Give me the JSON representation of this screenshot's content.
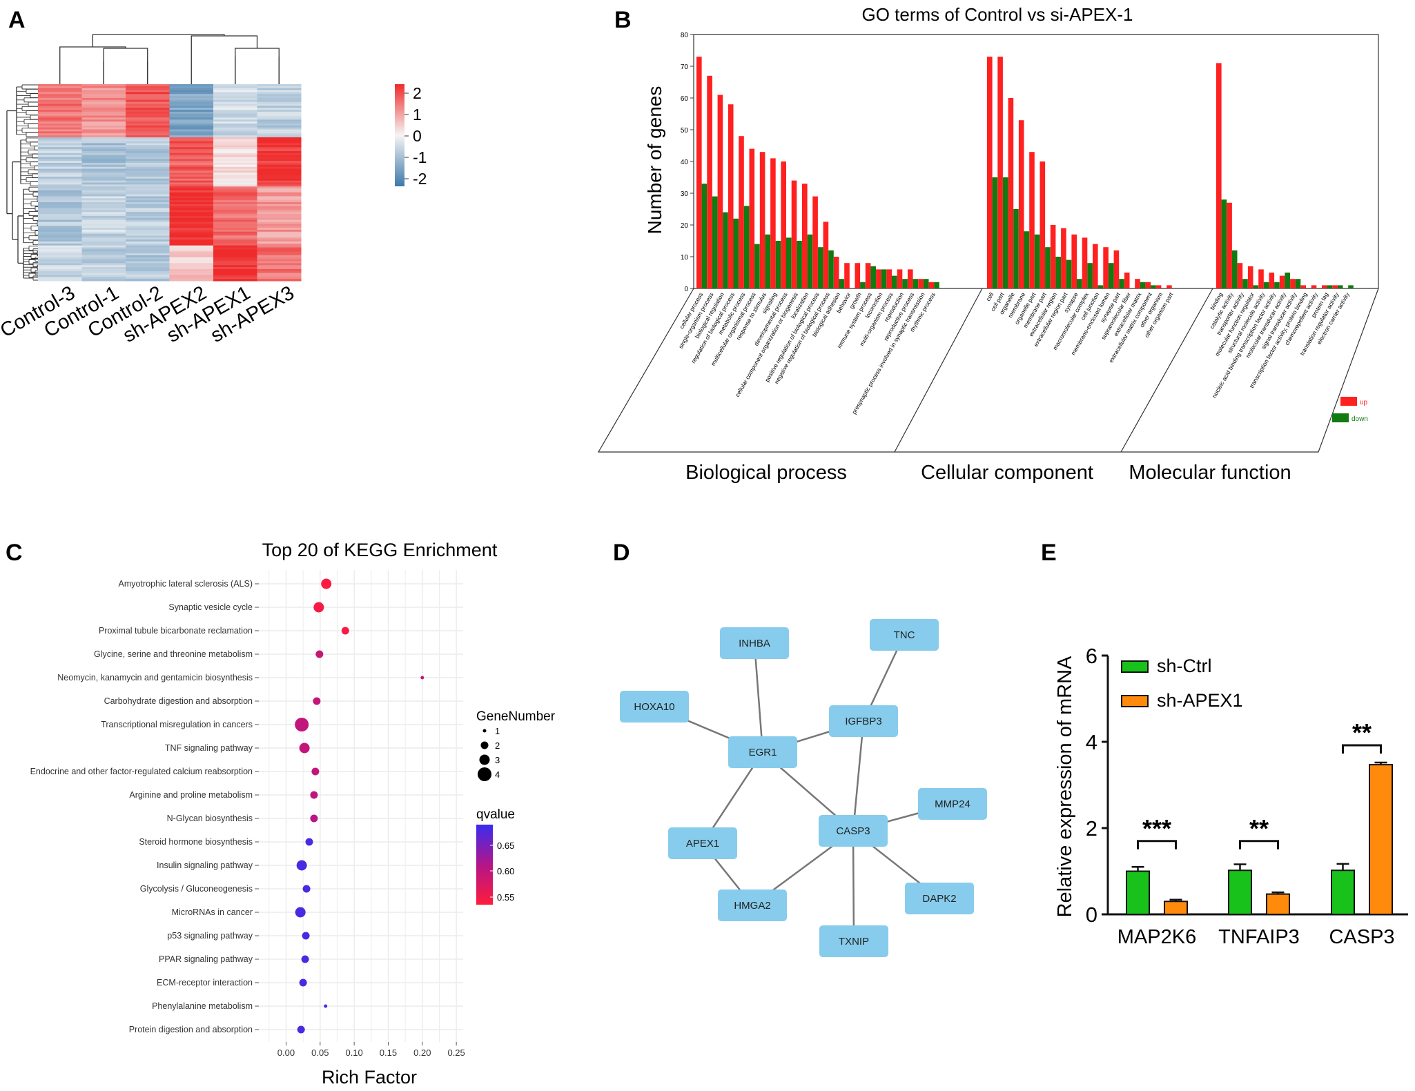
{
  "panels": {
    "A": "A",
    "B": "B",
    "C": "C",
    "D": "D",
    "E": "E"
  },
  "colors": {
    "up": "#ff2020",
    "down": "#117a11",
    "heat_high": "#ef2b2b",
    "heat_mid": "#f5f5f5",
    "heat_low": "#3c78aa",
    "node": "#87ccec",
    "edge": "#777777",
    "sh_ctrl": "#19c21a",
    "sh_apex1": "#ff8a0c"
  },
  "chart_data": [
    {
      "panel": "A",
      "type": "heatmap",
      "columns": [
        "Control-3",
        "Control-1",
        "Control-2",
        "sh-APEX2",
        "sh-APEX1",
        "sh-APEX3"
      ],
      "color_scale_ticks": [
        "2",
        "1",
        "0",
        "-1",
        "-2"
      ],
      "clusters": [
        {
          "rows": 27,
          "values": [
            1.3,
            1.0,
            1.6,
            -1.3,
            -0.4,
            -0.6
          ]
        },
        {
          "rows": 25,
          "values": [
            -0.6,
            -0.8,
            -0.7,
            1.5,
            0.2,
            1.9
          ]
        },
        {
          "rows": 30,
          "values": [
            -0.7,
            -0.5,
            -0.6,
            2.0,
            1.4,
            0.9
          ]
        },
        {
          "rows": 18,
          "values": [
            -0.5,
            -0.6,
            -0.7,
            0.4,
            2.0,
            1.3
          ]
        }
      ]
    },
    {
      "panel": "B",
      "type": "bar",
      "title": "GO terms of Control vs si-APEX-1",
      "ylabel": "Number of genes",
      "ylim": [
        0,
        80
      ],
      "yticks": [
        "0",
        "10",
        "20",
        "30",
        "40",
        "50",
        "60",
        "70",
        "80"
      ],
      "legend": {
        "position": "right",
        "up": "up",
        "down": "down"
      },
      "groups": [
        {
          "name": "Biological process",
          "terms": [
            "cellular process",
            "single-organism process",
            "biological regulation",
            "regulation of biological process",
            "metabolic process",
            "multicellular organismal process",
            "response to stimulus",
            "signaling",
            "developmental process",
            "cellular component organization or biogenesis",
            "localization",
            "positive regulation of biological process",
            "negative regulation of biological process",
            "biological adhesion",
            "behavior",
            "growth",
            "immune system process",
            "locomotion",
            "multi-organism process",
            "reproduction",
            "reproductive process",
            "presynaptic process involved in synaptic transmission",
            "rhythmic process"
          ],
          "up": [
            73,
            67,
            61,
            58,
            48,
            44,
            43,
            41,
            40,
            34,
            33,
            29,
            21,
            10,
            8,
            8,
            8,
            6,
            6,
            6,
            6,
            3,
            2
          ],
          "down": [
            33,
            29,
            24,
            22,
            26,
            14,
            17,
            15,
            16,
            15,
            17,
            13,
            12,
            3,
            0,
            2,
            7,
            6,
            4,
            3,
            3,
            3,
            2
          ]
        },
        {
          "name": "Cellular component",
          "terms": [
            "cell",
            "cell part",
            "organelle",
            "membrane",
            "organelle part",
            "membrane part",
            "extracellular region",
            "extracellular region part",
            "synapse",
            "macromolecular complex",
            "cell junction",
            "membrane-enclosed lumen",
            "synapse part",
            "supramolecular fiber",
            "extracellular matrix",
            "extracellular matrix component",
            "other organism",
            "other organism part"
          ],
          "up": [
            73,
            73,
            60,
            53,
            43,
            40,
            20,
            19,
            17,
            16,
            14,
            13,
            12,
            5,
            3,
            2,
            1,
            1
          ],
          "down": [
            35,
            35,
            25,
            18,
            17,
            13,
            10,
            9,
            3,
            8,
            1,
            8,
            3,
            0,
            2,
            1,
            0,
            0
          ]
        },
        {
          "name": "Molecular function",
          "terms": [
            "binding",
            "catalytic activity",
            "transporter activity",
            "molecular function regulator",
            "structural molecule activity",
            "nucleic acid binding transcription factor activity",
            "molecular transducer activity",
            "signal transducer activity",
            "transcription factor activity, protein binding",
            "chemorepellent activity",
            "protein tag",
            "translation regulator activity",
            "electron carrier activity"
          ],
          "up": [
            71,
            27,
            8,
            7,
            6,
            5,
            4,
            3,
            1,
            1,
            1,
            1,
            0
          ],
          "down": [
            28,
            12,
            3,
            1,
            2,
            2,
            5,
            3,
            0,
            0,
            1,
            1,
            1
          ]
        }
      ]
    },
    {
      "panel": "C",
      "type": "scatter",
      "title": "Top 20 of KEGG Enrichment",
      "xlabel": "Rich Factor",
      "xlim": [
        -0.04,
        0.26
      ],
      "xticks": [
        "0.00",
        "0.05",
        "0.10",
        "0.15",
        "0.20",
        "0.25"
      ],
      "size_legend_title": "GeneNumber",
      "size_legend": [
        "1",
        "2",
        "3",
        "4"
      ],
      "color_legend_title": "qvalue",
      "color_legend_ticks": [
        "0.65",
        "0.60",
        "0.55"
      ],
      "qrange": [
        0.53,
        0.68
      ],
      "points": [
        {
          "term": "Amyotrophic lateral sclerosis (ALS)",
          "rich": 0.059,
          "genes": 3,
          "q": 0.535
        },
        {
          "term": "Synaptic vesicle cycle",
          "rich": 0.048,
          "genes": 3,
          "q": 0.54
        },
        {
          "term": "Proximal tubule bicarbonate reclamation",
          "rich": 0.087,
          "genes": 2,
          "q": 0.54
        },
        {
          "term": "Glycine, serine and threonine metabolism",
          "rich": 0.049,
          "genes": 2,
          "q": 0.585
        },
        {
          "term": "Neomycin, kanamycin and gentamicin biosynthesis",
          "rich": 0.2,
          "genes": 1,
          "q": 0.59
        },
        {
          "term": "Carbohydrate digestion and absorption",
          "rich": 0.045,
          "genes": 2,
          "q": 0.59
        },
        {
          "term": "Transcriptional misregulation in cancers",
          "rich": 0.023,
          "genes": 4,
          "q": 0.59
        },
        {
          "term": "TNF signaling pathway",
          "rich": 0.027,
          "genes": 3,
          "q": 0.59
        },
        {
          "term": "Endocrine and other factor-regulated calcium reabsorption",
          "rich": 0.043,
          "genes": 2,
          "q": 0.59
        },
        {
          "term": "Arginine and proline metabolism",
          "rich": 0.041,
          "genes": 2,
          "q": 0.595
        },
        {
          "term": "N-Glycan biosynthesis",
          "rich": 0.041,
          "genes": 2,
          "q": 0.6
        },
        {
          "term": "Steroid hormone biosynthesis",
          "rich": 0.034,
          "genes": 2,
          "q": 0.67
        },
        {
          "term": "Insulin signaling pathway",
          "rich": 0.023,
          "genes": 3,
          "q": 0.67
        },
        {
          "term": "Glycolysis / Gluconeogenesis",
          "rich": 0.03,
          "genes": 2,
          "q": 0.67
        },
        {
          "term": "MicroRNAs in cancer",
          "rich": 0.021,
          "genes": 3,
          "q": 0.67
        },
        {
          "term": "p53 signaling pathway",
          "rich": 0.029,
          "genes": 2,
          "q": 0.67
        },
        {
          "term": "PPAR signaling pathway",
          "rich": 0.028,
          "genes": 2,
          "q": 0.67
        },
        {
          "term": "ECM-receptor interaction",
          "rich": 0.025,
          "genes": 2,
          "q": 0.67
        },
        {
          "term": "Phenylalanine metabolism",
          "rich": 0.058,
          "genes": 1,
          "q": 0.67
        },
        {
          "term": "Protein digestion and absorption",
          "rich": 0.022,
          "genes": 2,
          "q": 0.67
        }
      ]
    },
    {
      "panel": "E",
      "type": "bar",
      "ylabel": "Relative expression of mRNA",
      "ylim": [
        0,
        6
      ],
      "yticks": [
        "0",
        "2",
        "4",
        "6"
      ],
      "categories": [
        "MAP2K6",
        "TNFAIP3",
        "CASP3"
      ],
      "series": [
        {
          "name": "sh-Ctrl",
          "values": [
            1.0,
            1.02,
            1.02
          ],
          "errors": [
            0.1,
            0.14,
            0.15
          ]
        },
        {
          "name": "sh-APEX1",
          "values": [
            0.3,
            0.47,
            3.47
          ],
          "errors": [
            0.04,
            0.04,
            0.05
          ]
        }
      ],
      "significance": [
        "***",
        "**",
        "**"
      ],
      "legend": {
        "position": "top-left"
      }
    }
  ],
  "network": {
    "nodes": [
      "INHBA",
      "TNC",
      "HOXA10",
      "IGFBP3",
      "EGR1",
      "MMP24",
      "APEX1",
      "CASP3",
      "DAPK2",
      "HMGA2",
      "TXNIP"
    ],
    "edges": [
      [
        "INHBA",
        "EGR1"
      ],
      [
        "HOXA10",
        "EGR1"
      ],
      [
        "EGR1",
        "IGFBP3"
      ],
      [
        "TNC",
        "IGFBP3"
      ],
      [
        "EGR1",
        "APEX1"
      ],
      [
        "EGR1",
        "CASP3"
      ],
      [
        "IGFBP3",
        "CASP3"
      ],
      [
        "APEX1",
        "HMGA2"
      ],
      [
        "CASP3",
        "HMGA2"
      ],
      [
        "CASP3",
        "MMP24"
      ],
      [
        "CASP3",
        "DAPK2"
      ],
      [
        "CASP3",
        "TXNIP"
      ]
    ]
  }
}
